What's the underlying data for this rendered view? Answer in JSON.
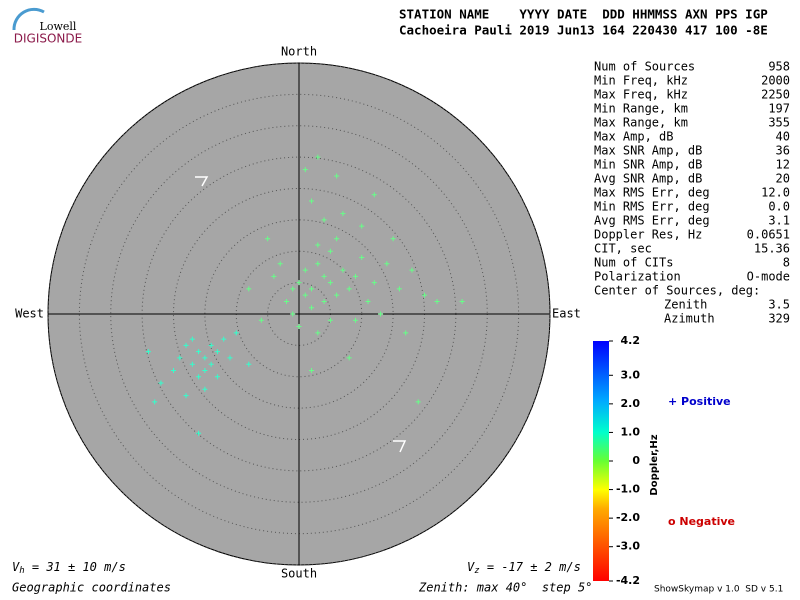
{
  "chart_data": {
    "type": "skymap",
    "logo": {
      "line1": "Lowell",
      "line2": "DIGISONDE"
    },
    "header": {
      "labels": "STATION NAME    YYYY DATE  DDD HHMMSS AXN PPS IGP",
      "values": "Cachoeira Pauli 2019 Jun13 164 220430 417 100 -8E"
    },
    "directions": {
      "north": "North",
      "south": "South",
      "east": "East",
      "west": "West"
    },
    "rlim": [
      0,
      40
    ],
    "rings": [
      5,
      10,
      15,
      20,
      25,
      30,
      35,
      40
    ],
    "series": [
      {
        "name": "Positive",
        "color": "#66ff88",
        "east": [
          2,
          4,
          1,
          5,
          3,
          6,
          0,
          7,
          2,
          4,
          8,
          9,
          3,
          5,
          1,
          -1,
          -2,
          10,
          12,
          11,
          6,
          4,
          2,
          7,
          -3,
          -4,
          14,
          16,
          13,
          9,
          5,
          3,
          0,
          -1,
          15,
          18,
          20,
          22,
          10,
          -5,
          -8,
          1,
          3,
          6,
          12,
          17,
          8,
          2,
          -6,
          19,
          26
        ],
        "north": [
          4,
          6,
          3,
          5,
          8,
          3,
          5,
          7,
          1,
          2,
          4,
          6,
          11,
          10,
          7,
          4,
          2,
          9,
          5,
          2,
          12,
          15,
          18,
          16,
          8,
          6,
          8,
          4,
          0,
          -1,
          -1,
          -3,
          -2,
          0,
          12,
          7,
          3,
          2,
          14,
          12,
          4,
          23,
          25,
          22,
          19,
          -3,
          -7,
          -9,
          -1,
          -14,
          2
        ]
      },
      {
        "name": "Positive",
        "color": "#33ffcc",
        "east": [
          -15,
          -16,
          -14,
          -17,
          -13,
          -18,
          -15,
          -12,
          -16,
          -19,
          -14,
          -17,
          -13,
          -20,
          -11,
          -15,
          -22,
          -18,
          -10,
          -24,
          -16,
          -8,
          -23
        ],
        "north": [
          -7,
          -6,
          -8,
          -8,
          -6,
          -5,
          -9,
          -4,
          -10,
          -7,
          -5,
          -4,
          -10,
          -9,
          -7,
          -12,
          -11,
          -13,
          -3,
          -6,
          -19,
          -8,
          -14
        ]
      }
    ],
    "stats": [
      [
        "Num of Sources",
        "958"
      ],
      [
        "Min Freq, kHz",
        "2000"
      ],
      [
        "Max Freq, kHz",
        "2250"
      ],
      [
        "Min Range, km",
        "197"
      ],
      [
        "Max Range, km",
        "355"
      ],
      [
        "Max Amp, dB",
        "40"
      ],
      [
        "Max SNR Amp, dB",
        "36"
      ],
      [
        "Min SNR Amp, dB",
        "12"
      ],
      [
        "Avg SNR Amp, dB",
        "20"
      ],
      [
        "Max RMS Err, deg",
        "12.0"
      ],
      [
        "Min RMS Err, deg",
        "0.0"
      ],
      [
        "Avg RMS Err, deg",
        "3.1"
      ],
      [
        "Doppler Res, Hz",
        "0.0651"
      ],
      [
        "CIT, sec",
        "15.36"
      ],
      [
        "Num of CITs",
        "8"
      ],
      [
        "Polarization",
        "O-mode"
      ]
    ],
    "center_title": "Center of Sources, deg:",
    "center": [
      [
        "Zenith",
        "3.5"
      ],
      [
        "Azimuth",
        "329"
      ]
    ],
    "colorbar": {
      "label": "Doppler,Hz",
      "ylim": [
        -4.2,
        4.2
      ],
      "ticks": [
        {
          "value": 4.2,
          "label": "4.2"
        },
        {
          "value": 3,
          "label": "3.0"
        },
        {
          "value": 2,
          "label": "2.0"
        },
        {
          "value": 1,
          "label": "1.0"
        },
        0,
        {
          "value": -1,
          "label": "-1.0"
        },
        {
          "value": -2,
          "label": "-2.0"
        },
        {
          "value": -3,
          "label": "-3.0"
        },
        {
          "value": -4.2,
          "label": "-4.2"
        }
      ]
    },
    "legend": {
      "positive": "+ Positive",
      "negative": "o Negative"
    },
    "vh": {
      "symbol": "V",
      "sub": "h",
      "text": " = 31 ± 10 m/s"
    },
    "vz": {
      "symbol": "V",
      "sub": "z",
      "text": " = -17 ± 2 m/s"
    },
    "coords": "Geographic coordinates",
    "zenith_note": "Zenith: max 40°  step 5°",
    "version": "ShowSkymap v 1.0  SD v 5.1"
  }
}
